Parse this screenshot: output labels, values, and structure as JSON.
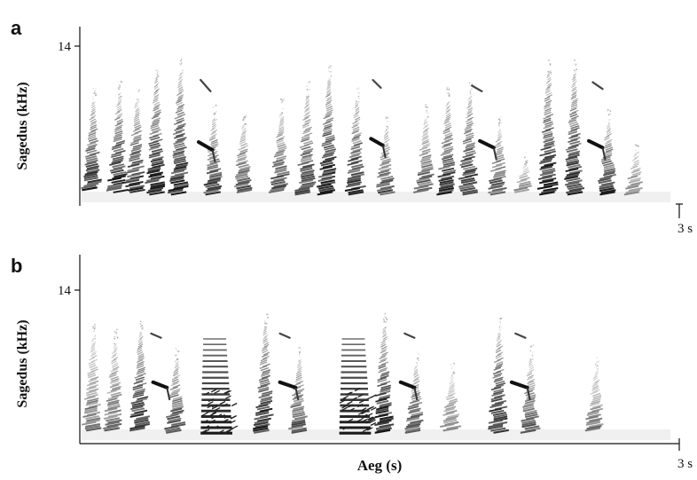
{
  "chart_data": [
    {
      "type": "heatmap",
      "panel_label": "a",
      "ylabel": "Sagedus (kHz)",
      "y_tick_labels": [
        "14"
      ],
      "x_tick_labels": [
        "3 s"
      ],
      "xlim": [
        0,
        3
      ],
      "syllables": [
        {
          "t": 0.07,
          "f_lo": 1.2,
          "f_hi": 9.0,
          "strength": 0.85
        },
        {
          "t": 0.2,
          "f_lo": 1.0,
          "f_hi": 9.5,
          "strength": 0.9
        },
        {
          "t": 0.29,
          "f_lo": 1.0,
          "f_hi": 9.0,
          "strength": 0.85
        },
        {
          "t": 0.39,
          "f_lo": 0.8,
          "f_hi": 11.0,
          "strength": 0.95
        },
        {
          "t": 0.51,
          "f_lo": 0.8,
          "f_hi": 11.5,
          "strength": 0.95
        },
        {
          "t": 0.68,
          "f_lo": 0.8,
          "f_hi": 7.5,
          "strength": 0.8
        },
        {
          "t": 0.83,
          "f_lo": 1.0,
          "f_hi": 7.0,
          "strength": 0.7
        },
        {
          "t": 1.02,
          "f_lo": 1.0,
          "f_hi": 8.0,
          "strength": 0.75
        },
        {
          "t": 1.15,
          "f_lo": 0.8,
          "f_hi": 9.5,
          "strength": 0.8
        },
        {
          "t": 1.26,
          "f_lo": 0.8,
          "f_hi": 11.0,
          "strength": 0.95
        },
        {
          "t": 1.4,
          "f_lo": 0.8,
          "f_hi": 9.0,
          "strength": 0.9
        },
        {
          "t": 1.55,
          "f_lo": 0.8,
          "f_hi": 6.5,
          "strength": 0.8
        },
        {
          "t": 1.75,
          "f_lo": 1.0,
          "f_hi": 7.5,
          "strength": 0.7
        },
        {
          "t": 1.86,
          "f_lo": 0.8,
          "f_hi": 9.0,
          "strength": 0.85
        },
        {
          "t": 1.97,
          "f_lo": 0.8,
          "f_hi": 9.5,
          "strength": 0.9
        },
        {
          "t": 2.12,
          "f_lo": 0.8,
          "f_hi": 6.5,
          "strength": 0.75
        },
        {
          "t": 2.25,
          "f_lo": 1.0,
          "f_hi": 3.5,
          "strength": 0.5
        },
        {
          "t": 2.37,
          "f_lo": 0.8,
          "f_hi": 11.5,
          "strength": 0.95
        },
        {
          "t": 2.5,
          "f_lo": 0.8,
          "f_hi": 11.5,
          "strength": 0.95
        },
        {
          "t": 2.67,
          "f_lo": 0.8,
          "f_hi": 7.0,
          "strength": 0.85
        },
        {
          "t": 2.81,
          "f_lo": 0.8,
          "f_hi": 4.5,
          "strength": 0.55
        }
      ],
      "tonal_notes": [
        {
          "t0": 0.6,
          "t1": 0.67,
          "f0": 5.5,
          "f1": 4.8
        },
        {
          "t0": 1.47,
          "t1": 1.53,
          "f0": 5.8,
          "f1": 5.2
        },
        {
          "t0": 2.02,
          "t1": 2.09,
          "f0": 5.6,
          "f1": 5.0
        },
        {
          "t0": 2.57,
          "t1": 2.64,
          "f0": 5.6,
          "f1": 5.0
        }
      ],
      "high_whistles": [
        {
          "t0": 0.61,
          "t1": 0.66,
          "f0": 11.0,
          "f1": 10.0
        },
        {
          "t0": 1.48,
          "t1": 1.52,
          "f0": 11.0,
          "f1": 10.3
        },
        {
          "t0": 1.98,
          "t1": 2.03,
          "f0": 10.5,
          "f1": 10.0
        },
        {
          "t0": 2.59,
          "t1": 2.64,
          "f0": 10.8,
          "f1": 10.2
        }
      ]
    },
    {
      "type": "heatmap",
      "panel_label": "b",
      "ylabel": "Sagedus (kHz)",
      "xlabel": "Aeg (s)",
      "y_tick_labels": [
        "14"
      ],
      "x_tick_labels": [
        "3 s"
      ],
      "xlim": [
        0,
        3
      ],
      "syllables": [
        {
          "t": 0.07,
          "f_lo": 1.0,
          "f_hi": 9.5,
          "strength": 0.6
        },
        {
          "t": 0.18,
          "f_lo": 1.0,
          "f_hi": 9.0,
          "strength": 0.6
        },
        {
          "t": 0.31,
          "f_lo": 1.0,
          "f_hi": 10.0,
          "strength": 0.9
        },
        {
          "t": 0.49,
          "f_lo": 0.8,
          "f_hi": 7.5,
          "strength": 0.8
        },
        {
          "t": 0.94,
          "f_lo": 0.8,
          "f_hi": 10.5,
          "strength": 0.9
        },
        {
          "t": 1.11,
          "f_lo": 0.8,
          "f_hi": 7.5,
          "strength": 0.75
        },
        {
          "t": 1.54,
          "f_lo": 0.8,
          "f_hi": 10.5,
          "strength": 0.95
        },
        {
          "t": 1.7,
          "f_lo": 0.8,
          "f_hi": 7.0,
          "strength": 0.75
        },
        {
          "t": 1.88,
          "f_lo": 1.0,
          "f_hi": 6.0,
          "strength": 0.5
        },
        {
          "t": 2.12,
          "f_lo": 0.8,
          "f_hi": 10.0,
          "strength": 0.95
        },
        {
          "t": 2.28,
          "f_lo": 0.8,
          "f_hi": 7.5,
          "strength": 0.75
        },
        {
          "t": 2.61,
          "f_lo": 1.0,
          "f_hi": 6.5,
          "strength": 0.55
        }
      ],
      "harmonic_stacks": [
        {
          "t0": 0.61,
          "t1": 0.77,
          "f_lo": 0.8,
          "f_hi": 9.5
        },
        {
          "t0": 1.31,
          "t1": 1.47,
          "f_lo": 0.8,
          "f_hi": 9.5
        }
      ],
      "tonal_notes": [
        {
          "t0": 0.37,
          "t1": 0.44,
          "f0": 5.5,
          "f1": 5.0
        },
        {
          "t0": 1.01,
          "t1": 1.09,
          "f0": 5.5,
          "f1": 5.0
        },
        {
          "t0": 1.62,
          "t1": 1.69,
          "f0": 5.5,
          "f1": 5.0
        },
        {
          "t0": 2.18,
          "t1": 2.26,
          "f0": 5.5,
          "f1": 5.0
        }
      ],
      "high_whistles": [
        {
          "t0": 0.36,
          "t1": 0.41,
          "f0": 10.0,
          "f1": 9.6
        },
        {
          "t0": 1.01,
          "t1": 1.06,
          "f0": 10.0,
          "f1": 9.6
        },
        {
          "t0": 1.64,
          "t1": 1.69,
          "f0": 10.0,
          "f1": 9.6
        },
        {
          "t0": 2.2,
          "t1": 2.25,
          "f0": 10.0,
          "f1": 9.6
        }
      ]
    }
  ]
}
